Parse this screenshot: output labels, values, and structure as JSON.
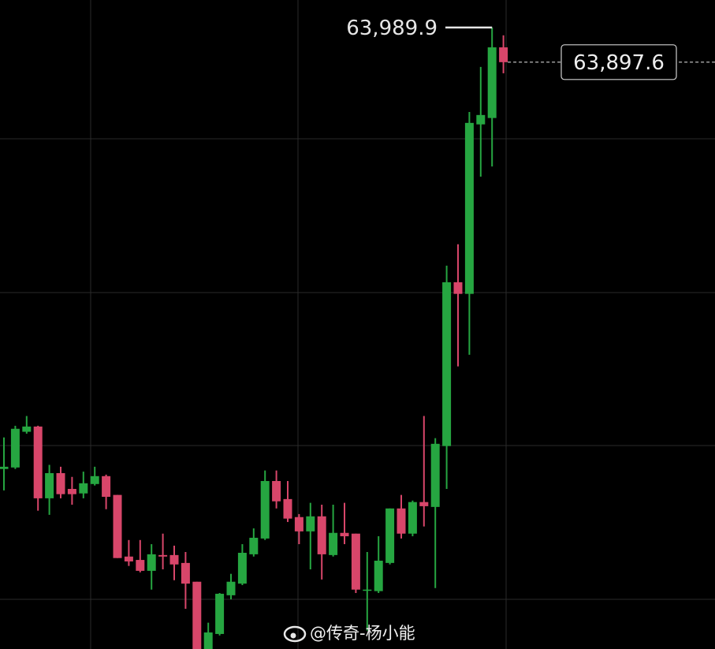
{
  "chart_data": {
    "type": "candlestick",
    "ylim": [
      62336,
      64063
    ],
    "colors": {
      "up": "#26a641",
      "down": "#d8466a"
    },
    "open": [
      62815,
      62819,
      62914,
      62928,
      62737,
      62804,
      62762,
      62750,
      62775,
      62796,
      62746,
      62582,
      62573,
      62544,
      62586,
      62586,
      62565,
      62515,
      62336,
      62376,
      62479,
      62510,
      62588,
      62630,
      62783,
      62735,
      62687,
      62649,
      62689,
      62586,
      62645,
      62643,
      62494,
      62490,
      62565,
      62710,
      62643,
      62727,
      62714,
      62876,
      63312,
      63281,
      63732,
      63749,
      63937
    ],
    "high": [
      62899,
      62930,
      62956,
      62930,
      62826,
      62821,
      62794,
      62808,
      62821,
      62800,
      62746,
      62626,
      62626,
      62615,
      62643,
      62611,
      62594,
      62515,
      62406,
      62485,
      62536,
      62615,
      62657,
      62811,
      62811,
      62783,
      62695,
      62725,
      62720,
      62720,
      62725,
      62643,
      62594,
      62636,
      62710,
      62746,
      62731,
      62956,
      62897,
      63356,
      63413,
      63765,
      63885,
      63989.9,
      63969
    ],
    "low": [
      62758,
      62815,
      62909,
      62704,
      62693,
      62737,
      62720,
      62737,
      62771,
      62708,
      62578,
      62557,
      62540,
      62494,
      62548,
      62519,
      62443,
      62336,
      62336,
      62372,
      62468,
      62506,
      62582,
      62626,
      62710,
      62674,
      62615,
      62548,
      62521,
      62582,
      62615,
      62485,
      62385,
      62485,
      62561,
      62630,
      62636,
      62662,
      62498,
      62762,
      63088,
      63119,
      63593,
      63620,
      63868
    ],
    "close": [
      62821,
      62922,
      62928,
      62737,
      62804,
      62748,
      62748,
      62777,
      62796,
      62741,
      62578,
      62569,
      62544,
      62588,
      62582,
      62561,
      62510,
      62336,
      62380,
      62483,
      62515,
      62592,
      62632,
      62783,
      62729,
      62683,
      62649,
      62689,
      62588,
      62645,
      62636,
      62494,
      62494,
      62571,
      62710,
      62643,
      62727,
      62716,
      62882,
      63312,
      63281,
      63736,
      63757,
      63937,
      63897.6
    ],
    "high_label": {
      "value": 63989.9,
      "label": "63,989.9"
    },
    "last_label": {
      "value": 63897.6,
      "label": "63,897.6"
    }
  },
  "watermark": "@传奇-杨小能"
}
